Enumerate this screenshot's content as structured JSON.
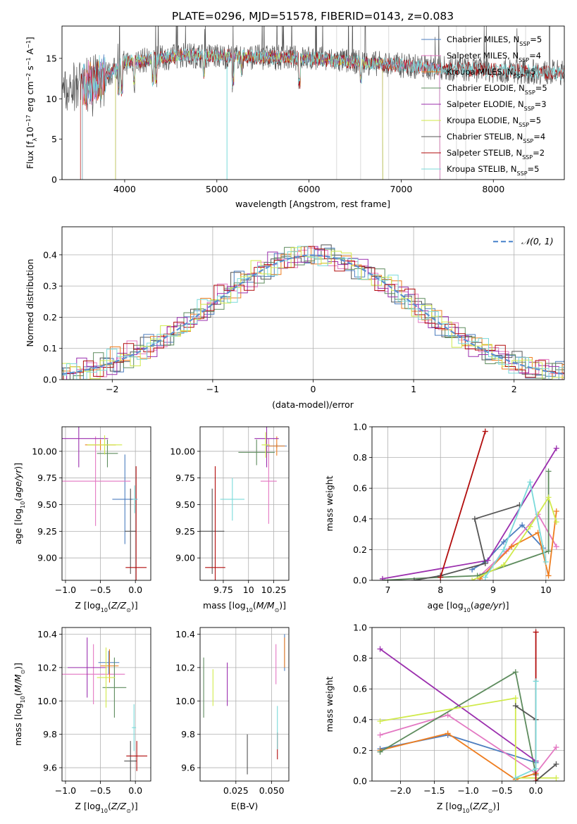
{
  "title": "PLATE=0296, MJD=51578, FIBERID=0143, z=0.083",
  "colors": [
    "#4c7dbf",
    "#e377c2",
    "#ee7d1f",
    "#5e8c5e",
    "#9b2fae",
    "#d0ea4a",
    "#555555",
    "#b20d0d",
    "#7adada"
  ],
  "chart_data": [
    {
      "type": "line",
      "name": "spectrum",
      "xlabel": "wavelength [Angstrom, rest frame]",
      "ylabel": "Flux [f_λ 10^-17 erg cm^-2 s^-1 A^-1]",
      "xlim": [
        3320,
        8770
      ],
      "ylim": [
        0,
        19
      ],
      "xticks": [
        4000,
        5000,
        6000,
        7000,
        8000
      ],
      "yticks": [
        0,
        5,
        10,
        15
      ],
      "grid": false,
      "legend_position": "right",
      "series": [
        {
          "name": "Chabrier MILES, N_SSP=5",
          "label_main": "Chabrier MILES, N",
          "label_sub": "SSP",
          "label_end": "=5",
          "start": 3540,
          "end": 7420
        },
        {
          "name": "Salpeter MILES, N_SSP=4",
          "label_main": "Salpeter MILES, N",
          "label_sub": "SSP",
          "label_end": "=4",
          "start": 3540,
          "end": 7420
        },
        {
          "name": "Kroupa MILES, N_SSP=5",
          "label_main": "Kroupa MILES, N",
          "label_sub": "SSP",
          "label_end": "=5",
          "start": 3540,
          "end": 7420
        },
        {
          "name": "Chabrier ELODIE, N_SSP=5",
          "label_main": "Chabrier ELODIE, N",
          "label_sub": "SSP",
          "label_end": "=5",
          "start": 3900,
          "end": 6800
        },
        {
          "name": "Salpeter ELODIE, N_SSP=3",
          "label_main": "Salpeter ELODIE, N",
          "label_sub": "SSP",
          "label_end": "=3",
          "start": 3900,
          "end": 6800
        },
        {
          "name": "Kroupa ELODIE, N_SSP=5",
          "label_main": "Kroupa ELODIE, N",
          "label_sub": "SSP",
          "label_end": "=5",
          "start": 3900,
          "end": 6800
        },
        {
          "name": "Chabrier STELIB, N_SSP=4",
          "label_main": "Chabrier STELIB, N",
          "label_sub": "SSP",
          "label_end": "=4",
          "start": 3320,
          "end": 8770
        },
        {
          "name": "Salpeter STELIB, N_SSP=2",
          "label_main": "Salpeter STELIB, N",
          "label_sub": "SSP",
          "label_end": "=2",
          "start": 3520,
          "end": 8770
        },
        {
          "name": "Kroupa STELIB, N_SSP=5",
          "label_main": "Kroupa STELIB, N",
          "label_sub": "SSP",
          "label_end": "=5",
          "start": 3540,
          "end": 8770
        }
      ]
    },
    {
      "type": "step",
      "name": "residual distribution",
      "xlabel": "(data-model)/error",
      "ylabel": "Normed distribution",
      "xlim": [
        -2.5,
        2.5
      ],
      "ylim": [
        0,
        0.49
      ],
      "xticks": [
        -2,
        -1,
        0,
        1,
        2
      ],
      "yticks": [
        0.0,
        0.1,
        0.2,
        0.3,
        0.4
      ],
      "grid": true,
      "legend_position": "top-right",
      "reference": {
        "name": "N(0,1)",
        "label": "𝒩(0, 1)",
        "mu": 0,
        "sigma": 1
      }
    },
    {
      "type": "errorbar",
      "name": "age vs Z",
      "xlabel": "Z [log10(Z/Z⊙)]",
      "ylabel": "age [log10(age/yr)]",
      "xlim": [
        -1.05,
        0.22
      ],
      "ylim": [
        8.79,
        10.23
      ],
      "xticks": [
        -1.0,
        -0.5,
        0.0
      ],
      "yticks": [
        9.0,
        9.25,
        9.5,
        9.75,
        10.0
      ],
      "points": [
        {
          "x": -0.15,
          "y": 9.55,
          "xerr": 0.18,
          "yerr": 0.42
        },
        {
          "x": -0.57,
          "y": 9.72,
          "xerr": 0.5,
          "yerr": 0.42
        },
        {
          "x": -0.5,
          "y": 10.06,
          "xerr": 0.22,
          "yerr": 0.05
        },
        {
          "x": -0.4,
          "y": 9.98,
          "xerr": 0.15,
          "yerr": 0.13
        },
        {
          "x": -0.81,
          "y": 10.12,
          "xerr": 0.42,
          "yerr": 0.27
        },
        {
          "x": -0.44,
          "y": 10.06,
          "xerr": 0.25,
          "yerr": 0.09
        },
        {
          "x": -0.07,
          "y": 9.25,
          "xerr": 0.08,
          "yerr": 0.4
        },
        {
          "x": 0.01,
          "y": 8.91,
          "xerr": 0.15,
          "yerr": 0.95
        },
        {
          "x": -0.01,
          "y": 9.55,
          "xerr": 0.03,
          "yerr": 0.13
        }
      ]
    },
    {
      "type": "errorbar",
      "name": "age vs mass",
      "xlabel": "mass [log10(M/M⊙)]",
      "ylabel": "",
      "xlim": [
        9.52,
        10.4
      ],
      "ylim": [
        8.79,
        10.23
      ],
      "xticks": [
        9.75,
        10.0,
        10.25
      ],
      "yticks": [
        9.0,
        9.25,
        9.5,
        9.75,
        10.0
      ],
      "points": [
        {
          "x": 10.28,
          "y": 10.05,
          "xerr": 0.1,
          "yerr": 0.02
        },
        {
          "x": 10.2,
          "y": 9.72,
          "xerr": 0.08,
          "yerr": 0.4
        },
        {
          "x": 10.28,
          "y": 10.05,
          "xerr": 0.08,
          "yerr": 0.09
        },
        {
          "x": 10.08,
          "y": 9.99,
          "xerr": 0.18,
          "yerr": 0.12
        },
        {
          "x": 10.18,
          "y": 10.12,
          "xerr": 0.12,
          "yerr": 0.27
        },
        {
          "x": 10.17,
          "y": 10.06,
          "xerr": 0.04,
          "yerr": 0.12
        },
        {
          "x": 9.64,
          "y": 9.25,
          "xerr": 0.12,
          "yerr": 0.4
        },
        {
          "x": 9.67,
          "y": 8.91,
          "xerr": 0.1,
          "yerr": 0.95
        },
        {
          "x": 9.84,
          "y": 9.55,
          "xerr": 0.12,
          "yerr": 0.2
        }
      ]
    },
    {
      "type": "line",
      "name": "mass weight vs age",
      "xlabel": "age [log10(age/yr)]",
      "ylabel": "mass weight",
      "xlim": [
        6.7,
        10.35
      ],
      "ylim": [
        0,
        1.0
      ],
      "xticks": [
        7,
        8,
        9,
        10
      ],
      "yticks": [
        0.0,
        0.2,
        0.4,
        0.6,
        0.8,
        1.0
      ],
      "grid": true,
      "series": [
        {
          "x": [
            8.6,
            8.85,
            9.2,
            9.55,
            9.95
          ],
          "y": [
            0.07,
            0.12,
            0.25,
            0.36,
            0.21
          ]
        },
        {
          "x": [
            8.75,
            9.25,
            9.85,
            10.2
          ],
          "y": [
            0.03,
            0.19,
            0.43,
            0.22
          ]
        },
        {
          "x": [
            8.75,
            9.35,
            9.85,
            10.05,
            10.2
          ],
          "y": [
            0.01,
            0.22,
            0.31,
            0.03,
            0.45
          ]
        },
        {
          "x": [
            6.9,
            8.0,
            8.7,
            10.05,
            10.05
          ],
          "y": [
            0.0,
            0.02,
            0.03,
            0.19,
            0.71
          ]
        },
        {
          "x": [
            6.9,
            8.9,
            10.2
          ],
          "y": [
            0.01,
            0.13,
            0.86
          ]
        },
        {
          "x": [
            8.6,
            9.2,
            9.7,
            10.05,
            10.2
          ],
          "y": [
            0.0,
            0.1,
            0.35,
            0.54,
            0.38
          ]
        },
        {
          "x": [
            7.5,
            8.0,
            8.85,
            8.65,
            9.5
          ],
          "y": [
            0.0,
            0.03,
            0.11,
            0.4,
            0.49
          ]
        },
        {
          "x": [
            8.0,
            8.85
          ],
          "y": [
            0.02,
            0.97
          ]
        },
        {
          "x": [
            8.85,
            9.2,
            9.7,
            10.0
          ],
          "y": [
            0.02,
            0.2,
            0.64,
            0.12
          ]
        }
      ]
    },
    {
      "type": "errorbar",
      "name": "mass vs Z",
      "xlabel": "Z [log10(Z/Z⊙)]",
      "ylabel": "mass [log10(M/M⊙)]",
      "xlim": [
        -1.05,
        0.22
      ],
      "ylim": [
        9.52,
        10.44
      ],
      "xticks": [
        -1.0,
        -0.5,
        0.0
      ],
      "yticks": [
        9.6,
        9.8,
        10.0,
        10.2,
        10.4
      ],
      "points": [
        {
          "x": -0.38,
          "y": 10.23,
          "xerr": 0.15,
          "yerr": 0.07
        },
        {
          "x": -0.6,
          "y": 10.16,
          "xerr": 0.45,
          "yerr": 0.18
        },
        {
          "x": -0.37,
          "y": 10.21,
          "xerr": 0.13,
          "yerr": 0.1
        },
        {
          "x": -0.3,
          "y": 10.08,
          "xerr": 0.17,
          "yerr": 0.18
        },
        {
          "x": -0.69,
          "y": 10.2,
          "xerr": 0.28,
          "yerr": 0.18
        },
        {
          "x": -0.42,
          "y": 10.14,
          "xerr": 0.13,
          "yerr": 0.18
        },
        {
          "x": -0.07,
          "y": 9.64,
          "xerr": 0.09,
          "yerr": 0.12
        },
        {
          "x": 0.02,
          "y": 9.67,
          "xerr": 0.15,
          "yerr": 0.09
        },
        {
          "x": -0.02,
          "y": 9.84,
          "xerr": 0.03,
          "yerr": 0.14
        }
      ]
    },
    {
      "type": "errorbar",
      "name": "mass vs E(B-V)",
      "xlabel": "E(B-V)",
      "ylabel": "",
      "xlim": [
        0.0,
        0.062
      ],
      "ylim": [
        9.52,
        10.44
      ],
      "xticks": [
        0.025,
        0.05
      ],
      "yticks": [
        9.6,
        9.8,
        10.0,
        10.2,
        10.4
      ],
      "points": [
        {
          "x": 0.059,
          "y": 10.29,
          "xerr": 0.0,
          "yerr": 0.11
        },
        {
          "x": 0.053,
          "y": 10.22,
          "xerr": 0.0,
          "yerr": 0.12
        },
        {
          "x": 0.059,
          "y": 10.29,
          "xerr": 0.0,
          "yerr": 0.09
        },
        {
          "x": 0.0025,
          "y": 10.08,
          "xerr": 0.0,
          "yerr": 0.18
        },
        {
          "x": 0.019,
          "y": 10.1,
          "xerr": 0.0,
          "yerr": 0.13
        },
        {
          "x": 0.009,
          "y": 10.08,
          "xerr": 0.0,
          "yerr": 0.11
        },
        {
          "x": 0.033,
          "y": 9.68,
          "xerr": 0.0,
          "yerr": 0.12
        },
        {
          "x": 0.054,
          "y": 9.73,
          "xerr": 0.0,
          "yerr": 0.08
        },
        {
          "x": 0.054,
          "y": 9.84,
          "xerr": 0.0,
          "yerr": 0.13
        }
      ]
    },
    {
      "type": "line",
      "name": "mass weight vs Z",
      "xlabel": "Z [log10(Z/Z⊙)]",
      "ylabel": "mass weight",
      "xlim": [
        -2.42,
        0.42
      ],
      "ylim": [
        0,
        1.0
      ],
      "xticks": [
        -2.0,
        -1.5,
        -1.0,
        -0.5,
        0.0
      ],
      "yticks": [
        0.0,
        0.2,
        0.4,
        0.6,
        0.8,
        1.0
      ],
      "grid": true,
      "series": [
        {
          "x": [
            -2.3,
            -1.3,
            0.0
          ],
          "y": [
            0.21,
            0.3,
            0.12
          ]
        },
        {
          "x": [
            -2.3,
            -1.3,
            0.0,
            0.3
          ],
          "y": [
            0.3,
            0.43,
            0.05,
            0.22
          ]
        },
        {
          "x": [
            -2.3,
            -1.3,
            -0.3,
            0.0
          ],
          "y": [
            0.2,
            0.31,
            0.01,
            0.05
          ]
        },
        {
          "x": [
            -2.3,
            -0.3,
            0.0
          ],
          "y": [
            0.19,
            0.71,
            0.04
          ]
        },
        {
          "x": [
            -2.3,
            0.0
          ],
          "y": [
            0.86,
            0.13
          ]
        },
        {
          "x": [
            -2.3,
            -0.3,
            -0.3,
            0.3
          ],
          "y": [
            0.39,
            0.54,
            0.02,
            0.02
          ]
        },
        {
          "x": [
            -0.3,
            0.0,
            0.0,
            0.3
          ],
          "y": [
            0.49,
            0.4,
            0.0,
            0.11
          ]
        },
        {
          "x": [
            0.0,
            0.0
          ],
          "y": [
            0.0,
            0.97
          ]
        },
        {
          "x": [
            -0.3,
            0.0,
            0.0
          ],
          "y": [
            0.02,
            0.08,
            0.65
          ]
        }
      ]
    }
  ]
}
